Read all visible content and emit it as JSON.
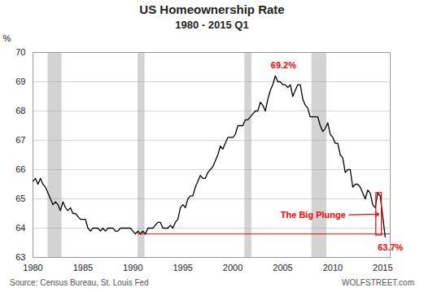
{
  "chart_data": {
    "type": "line",
    "title": "US Homeownership Rate",
    "subtitle": "1980 - 2015  Q1",
    "ylabel": "%",
    "source": "Source: Census Bureau, St. Louis Fed",
    "credit": "WOLFSTREET.com",
    "color": "#000000",
    "xlim": [
      1980,
      2015.75
    ],
    "xticks": [
      1980,
      1985,
      1990,
      1995,
      2000,
      2005,
      2010,
      2015
    ],
    "ylim": [
      63,
      70
    ],
    "yticks": [
      63,
      64,
      65,
      66,
      67,
      68,
      69,
      70
    ],
    "grid": true,
    "recession_color": "#d3d3d3",
    "recession_bands": [
      [
        1981.5,
        1982.9
      ],
      [
        1990.5,
        1991.2
      ],
      [
        2001.2,
        2001.9
      ],
      [
        2007.9,
        2009.4
      ]
    ],
    "annotation_color": "#ff0000",
    "reference_line": {
      "x_start": 1990.5,
      "y": 63.8
    },
    "peak": {
      "text": "69.2%",
      "x": 2003.8,
      "y": 69.45
    },
    "trough": {
      "text": "63.7%",
      "x": 2014.5,
      "y": 63.45
    },
    "big_plunge": {
      "text": "The Big Plunge",
      "x": 2011.3,
      "y": 64.45
    },
    "box": {
      "x1": 2014.35,
      "x2": 2014.9,
      "y1": 63.75,
      "y2": 65.2
    },
    "arrow": {
      "from": [
        2011.3,
        64.45
      ],
      "to": [
        2014.625,
        64.475
      ]
    },
    "x": [
      1980.0,
      1980.25,
      1980.5,
      1980.75,
      1981.0,
      1981.25,
      1981.5,
      1981.75,
      1982.0,
      1982.25,
      1982.5,
      1982.75,
      1983.0,
      1983.25,
      1983.5,
      1983.75,
      1984.0,
      1984.25,
      1984.5,
      1984.75,
      1985.0,
      1985.25,
      1985.5,
      1985.75,
      1986.0,
      1986.25,
      1986.5,
      1986.75,
      1987.0,
      1987.25,
      1987.5,
      1987.75,
      1988.0,
      1988.25,
      1988.5,
      1988.75,
      1989.0,
      1989.25,
      1989.5,
      1989.75,
      1990.0,
      1990.25,
      1990.5,
      1990.75,
      1991.0,
      1991.25,
      1991.5,
      1991.75,
      1992.0,
      1992.25,
      1992.5,
      1992.75,
      1993.0,
      1993.25,
      1993.5,
      1993.75,
      1994.0,
      1994.25,
      1994.5,
      1994.75,
      1995.0,
      1995.25,
      1995.5,
      1995.75,
      1996.0,
      1996.25,
      1996.5,
      1996.75,
      1997.0,
      1997.25,
      1997.5,
      1997.75,
      1998.0,
      1998.25,
      1998.5,
      1998.75,
      1999.0,
      1999.25,
      1999.5,
      1999.75,
      2000.0,
      2000.25,
      2000.5,
      2000.75,
      2001.0,
      2001.25,
      2001.5,
      2001.75,
      2002.0,
      2002.25,
      2002.5,
      2002.75,
      2003.0,
      2003.25,
      2003.5,
      2003.75,
      2004.0,
      2004.25,
      2004.5,
      2004.75,
      2005.0,
      2005.25,
      2005.5,
      2005.75,
      2006.0,
      2006.25,
      2006.5,
      2006.75,
      2007.0,
      2007.25,
      2007.5,
      2007.75,
      2008.0,
      2008.25,
      2008.5,
      2008.75,
      2009.0,
      2009.25,
      2009.5,
      2009.75,
      2010.0,
      2010.25,
      2010.5,
      2010.75,
      2011.0,
      2011.25,
      2011.5,
      2011.75,
      2012.0,
      2012.25,
      2012.5,
      2012.75,
      2013.0,
      2013.25,
      2013.5,
      2013.75,
      2014.0,
      2014.25,
      2014.5,
      2014.75,
      2015.0,
      2015.25
    ],
    "values": [
      65.6,
      65.7,
      65.5,
      65.7,
      65.5,
      65.4,
      65.2,
      65.0,
      64.8,
      64.9,
      64.8,
      64.6,
      64.9,
      64.7,
      64.6,
      64.7,
      64.5,
      64.5,
      64.4,
      64.3,
      64.3,
      64.3,
      64.0,
      63.9,
      64.0,
      64.0,
      64.0,
      63.9,
      64.0,
      63.9,
      64.0,
      64.0,
      64.0,
      63.9,
      63.9,
      64.0,
      64.0,
      64.0,
      64.0,
      64.0,
      63.9,
      63.8,
      63.9,
      63.8,
      63.9,
      63.8,
      64.0,
      64.0,
      64.0,
      64.1,
      64.2,
      64.2,
      64.0,
      64.0,
      64.0,
      64.1,
      64.0,
      64.2,
      64.3,
      64.7,
      64.8,
      64.7,
      65.0,
      65.1,
      65.1,
      65.4,
      65.6,
      65.8,
      65.7,
      65.7,
      65.9,
      66.0,
      66.1,
      66.3,
      66.5,
      66.8,
      66.7,
      66.9,
      67.1,
      67.1,
      67.1,
      67.2,
      67.5,
      67.5,
      67.5,
      67.7,
      67.7,
      67.8,
      67.9,
      68.0,
      68.0,
      68.3,
      68.2,
      68.0,
      68.4,
      68.7,
      68.9,
      69.2,
      69.0,
      69.0,
      68.9,
      68.9,
      68.8,
      68.9,
      68.5,
      68.7,
      68.9,
      68.9,
      68.4,
      68.2,
      68.1,
      67.8,
      67.8,
      67.8,
      67.8,
      67.5,
      67.3,
      67.4,
      67.6,
      67.2,
      67.1,
      66.9,
      66.9,
      66.5,
      66.4,
      65.9,
      66.0,
      66.0,
      65.4,
      65.5,
      65.5,
      65.4,
      65.2,
      65.0,
      65.3,
      65.2,
      64.8,
      64.7,
      65.2,
      65.1,
      64.4,
      63.7
    ]
  }
}
